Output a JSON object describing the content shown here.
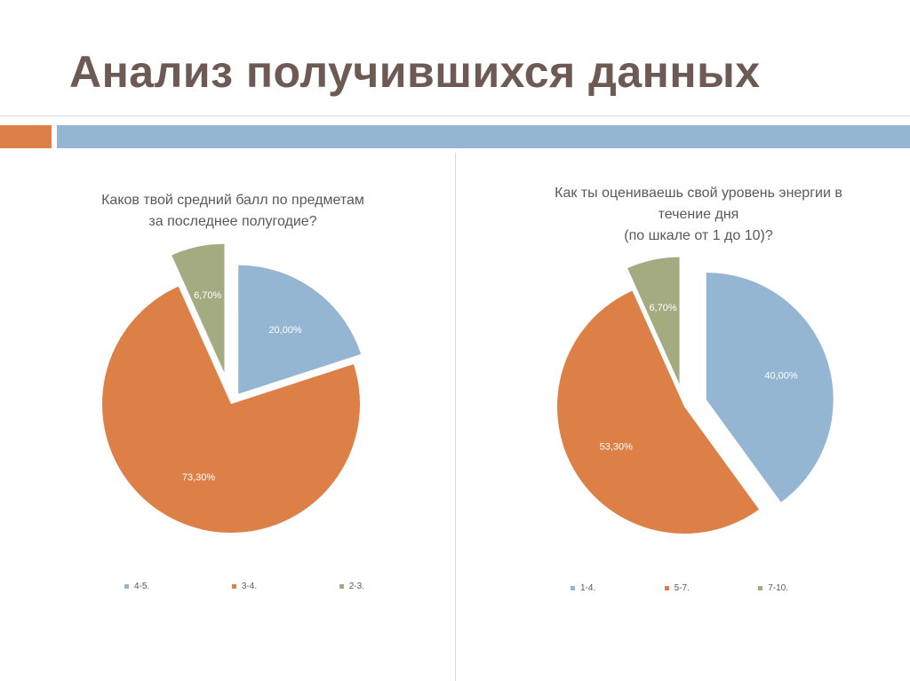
{
  "slide": {
    "title": "Анализ получившихся данных"
  },
  "colors": {
    "title": "#6e5a55",
    "accent_orange": "#dd8047",
    "accent_blue": "#94b6d2",
    "slice_blue": "#94b6d2",
    "slice_orange": "#dd8047",
    "slice_green": "#a5ab81"
  },
  "chart_data": [
    {
      "type": "pie",
      "title_lines": [
        "Каков твой средний балл по предметам",
        "за последнее полугодие?"
      ],
      "slices": [
        {
          "label": "4-5.",
          "value": 20.0,
          "display": "20,00%",
          "color": "#94b6d2"
        },
        {
          "label": "3-4.",
          "value": 73.3,
          "display": "73,30%",
          "color": "#dd8047"
        },
        {
          "label": "2-3.",
          "value": 6.7,
          "display": "6,70%",
          "color": "#a5ab81"
        }
      ],
      "legend_position": "bottom"
    },
    {
      "type": "pie",
      "title_lines": [
        "Как ты оцениваешь свой уровень энергии в",
        "течение дня",
        "(по шкале от 1 до 10)?"
      ],
      "slices": [
        {
          "label": "1-4.",
          "value": 40.0,
          "display": "40,00%",
          "color": "#94b6d2"
        },
        {
          "label": "5-7.",
          "value": 53.3,
          "display": "53,30%",
          "color": "#dd8047"
        },
        {
          "label": "7-10.",
          "value": 6.7,
          "display": "6,70%",
          "color": "#a5ab81"
        }
      ],
      "legend_position": "bottom"
    }
  ]
}
